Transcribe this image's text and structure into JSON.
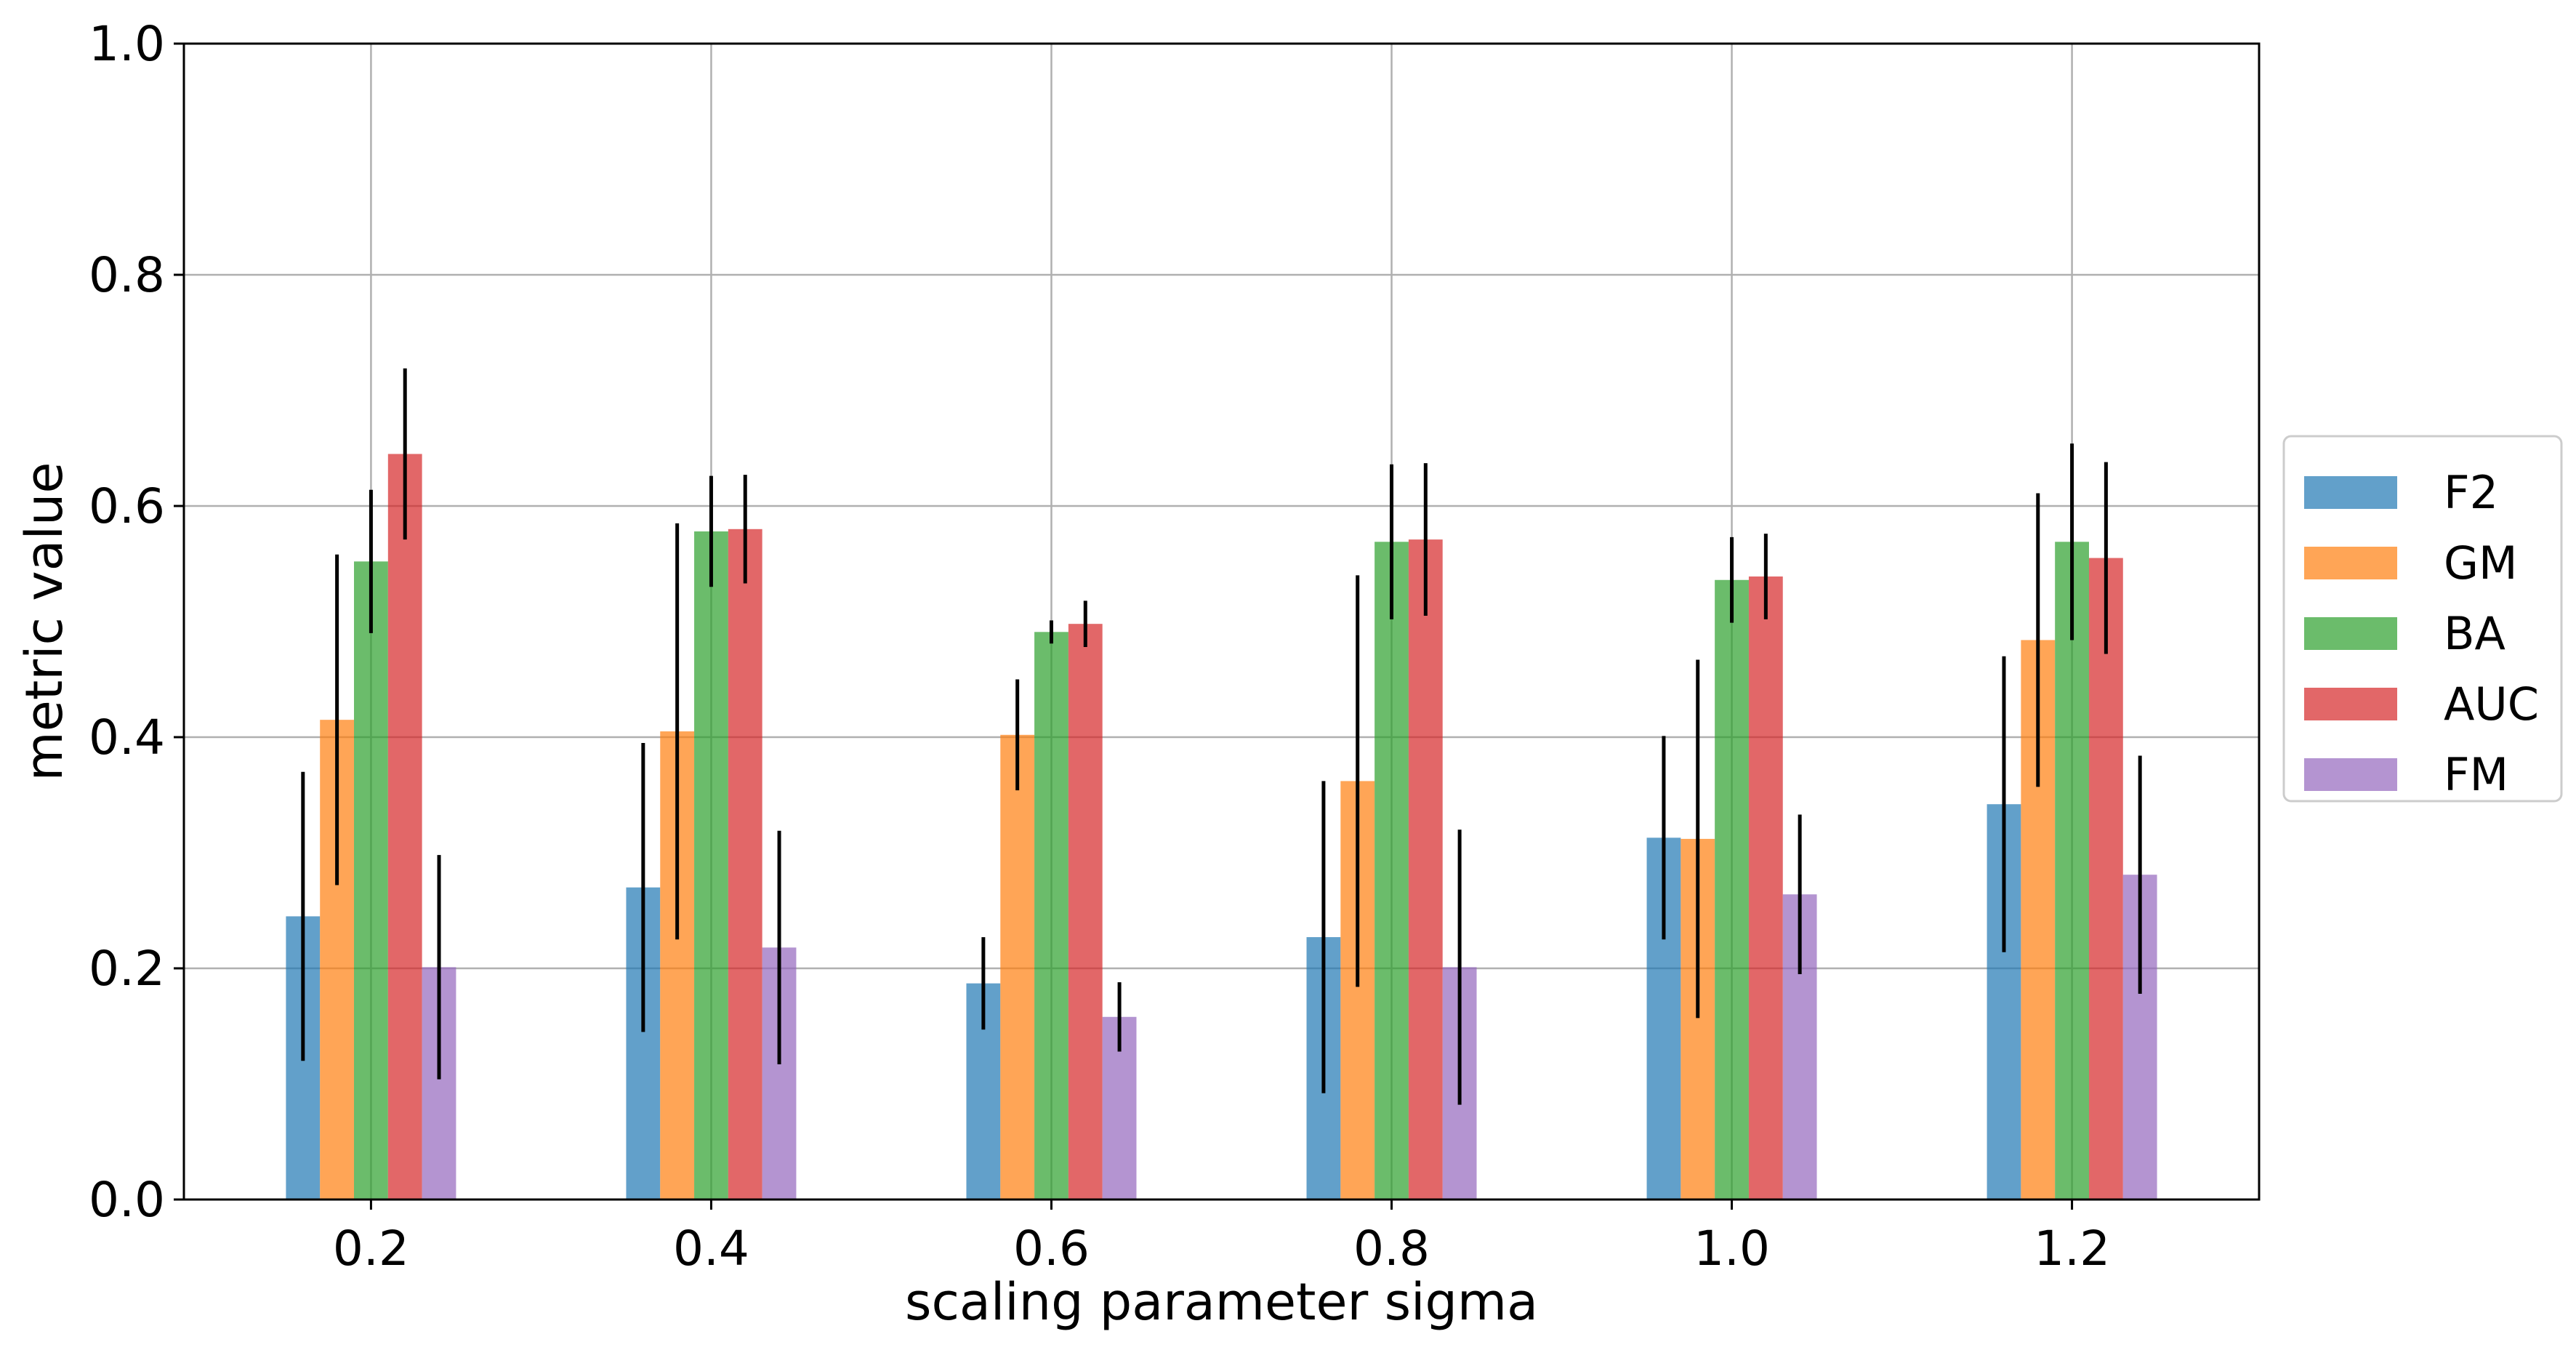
{
  "chart_data": {
    "type": "bar",
    "title": "",
    "xlabel": "scaling parameter sigma",
    "ylabel": "metric value",
    "ylim": [
      0,
      1.0
    ],
    "yticks": [
      "0.0",
      "0.2",
      "0.4",
      "0.6",
      "0.8",
      "1.0"
    ],
    "categories": [
      "0.2",
      "0.4",
      "0.6",
      "0.8",
      "1.0",
      "1.2"
    ],
    "grid": true,
    "legend_position": "right-outside",
    "series": [
      {
        "name": "F2",
        "color": "#1f77b4",
        "values": [
          0.245,
          0.27,
          0.187,
          0.227,
          0.313,
          0.342
        ],
        "errors": [
          0.125,
          0.125,
          0.04,
          0.135,
          0.088,
          0.128
        ]
      },
      {
        "name": "GM",
        "color": "#ff7f0e",
        "values": [
          0.415,
          0.405,
          0.402,
          0.362,
          0.312,
          0.484
        ],
        "errors": [
          0.143,
          0.18,
          0.048,
          0.178,
          0.155,
          0.127
        ]
      },
      {
        "name": "BA",
        "color": "#2ca02c",
        "values": [
          0.552,
          0.578,
          0.491,
          0.569,
          0.536,
          0.569
        ],
        "errors": [
          0.062,
          0.048,
          0.01,
          0.067,
          0.037,
          0.085
        ]
      },
      {
        "name": "AUC",
        "color": "#d62728",
        "values": [
          0.645,
          0.58,
          0.498,
          0.571,
          0.539,
          0.555
        ],
        "errors": [
          0.074,
          0.047,
          0.02,
          0.066,
          0.037,
          0.083
        ]
      },
      {
        "name": "FM",
        "color": "#9467bd",
        "values": [
          0.201,
          0.218,
          0.158,
          0.201,
          0.264,
          0.281
        ],
        "errors": [
          0.097,
          0.101,
          0.03,
          0.119,
          0.069,
          0.103
        ]
      }
    ]
  }
}
